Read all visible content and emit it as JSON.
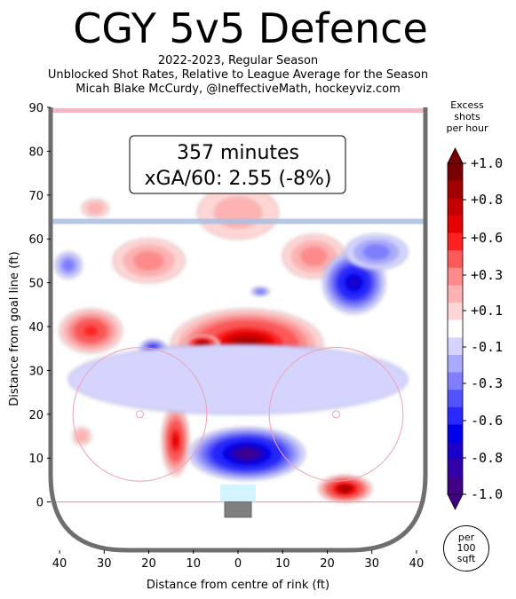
{
  "header": {
    "title": "CGY 5v5 Defence",
    "subtitle_lines": [
      "2022-2023, Regular Season",
      "Unblocked Shot Rates, Relative to League Average for the Season",
      "Micah Blake McCurdy, @IneffectiveMath, hockeyviz.com"
    ]
  },
  "annotation": {
    "line1": "357 minutes",
    "line2": "xGA/60: 2.55 (-8%)"
  },
  "colorbar": {
    "title_lines": [
      "Excess",
      "shots",
      "per hour"
    ],
    "tick_labels": [
      "+1.0",
      "+0.8",
      "+0.6",
      "+0.3",
      "+0.1",
      "-0.1",
      "-0.3",
      "-0.6",
      "-0.8",
      "-1.0"
    ],
    "colors_top_to_bottom": [
      "#7a0000",
      "#a00000",
      "#c40000",
      "#e60000",
      "#ff2020",
      "#ff5a5a",
      "#ff8a8a",
      "#ffb2b2",
      "#ffd6d6",
      "#ffffff",
      "#d4d4ff",
      "#a9a9ff",
      "#7e7eff",
      "#5252ff",
      "#2828ff",
      "#0000ee",
      "#1a00c8",
      "#3200a8",
      "#420088"
    ]
  },
  "badge": {
    "lines": [
      "per",
      "100",
      "sqft"
    ]
  },
  "chart_data": {
    "type": "heatmap",
    "title": "CGY 5v5 Defence",
    "xlabel": "Distance from centre of rink (ft)",
    "ylabel": "Distance from goal line (ft)",
    "xlim": [
      42,
      -42
    ],
    "ylim": [
      -11,
      90
    ],
    "x_tick_labels": [
      "40",
      "30",
      "20",
      "10",
      "0",
      "10",
      "20",
      "30",
      "40"
    ],
    "y_tick_labels": [
      "0",
      "10",
      "20",
      "30",
      "40",
      "50",
      "60",
      "70",
      "80",
      "90"
    ],
    "value_range": [
      -1.0,
      1.0
    ],
    "regions": [
      {
        "x": -2,
        "y": 36,
        "rx": 17,
        "ry": 8,
        "value": 0.9
      },
      {
        "x": 8,
        "y": 36,
        "rx": 4,
        "ry": 2,
        "value": 1.0
      },
      {
        "x": 33,
        "y": 39,
        "rx": 7,
        "ry": 5,
        "value": 0.6
      },
      {
        "x": 20,
        "y": 55,
        "rx": 8,
        "ry": 5,
        "value": 0.3
      },
      {
        "x": -17,
        "y": 56,
        "rx": 7,
        "ry": 5,
        "value": 0.3
      },
      {
        "x": 0,
        "y": 66,
        "rx": 9,
        "ry": 6,
        "value": 0.2
      },
      {
        "x": 32,
        "y": 67,
        "rx": 3,
        "ry": 2,
        "value": 0.2
      },
      {
        "x": 14,
        "y": 14,
        "rx": 3,
        "ry": 8,
        "value": 0.7
      },
      {
        "x": -24,
        "y": 3,
        "rx": 6,
        "ry": 3,
        "value": 0.9
      },
      {
        "x": 32,
        "y": 28,
        "rx": 3,
        "ry": 2,
        "value": 0.2
      },
      {
        "x": 35,
        "y": 15,
        "rx": 2,
        "ry": 2,
        "value": 0.2
      },
      {
        "x": -2,
        "y": 11,
        "rx": 13,
        "ry": 6,
        "value": -1.0
      },
      {
        "x": -26,
        "y": 50,
        "rx": 7,
        "ry": 7,
        "value": -0.8
      },
      {
        "x": -31,
        "y": 57,
        "rx": 7,
        "ry": 4,
        "value": -0.3
      },
      {
        "x": 19,
        "y": 35,
        "rx": 3,
        "ry": 2,
        "value": -0.5
      },
      {
        "x": 0,
        "y": 28,
        "rx": 38,
        "ry": 8,
        "value": -0.1
      },
      {
        "x": 38,
        "y": 54,
        "rx": 3,
        "ry": 3,
        "value": -0.3
      },
      {
        "x": -5,
        "y": 48,
        "rx": 2,
        "ry": 1,
        "value": -0.3
      }
    ]
  }
}
